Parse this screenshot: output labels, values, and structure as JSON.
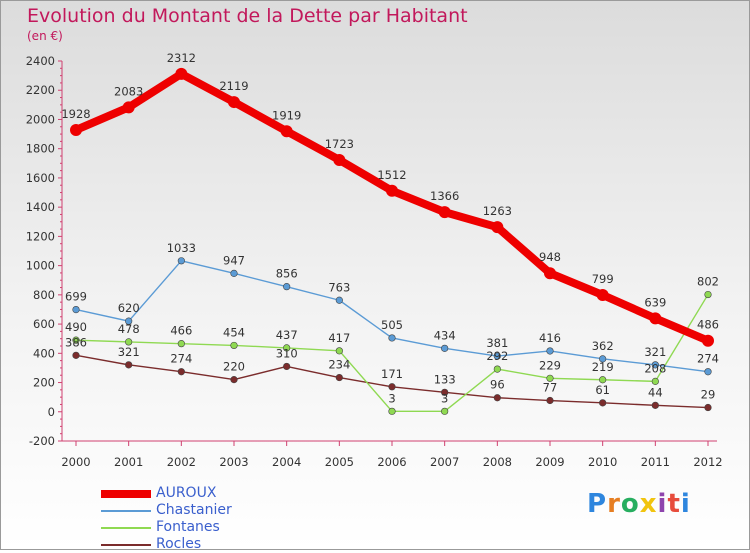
{
  "header": {
    "title": "Evolution du Montant de la Dette par Habitant",
    "subtitle": "(en €)"
  },
  "brand": {
    "text": "Proxiti"
  },
  "chart_data": {
    "type": "line",
    "x": [
      "2000",
      "2001",
      "2002",
      "2003",
      "2004",
      "2005",
      "2006",
      "2007",
      "2008",
      "2009",
      "2010",
      "2011",
      "2012"
    ],
    "ylim": [
      -200,
      2400
    ],
    "yticks": [
      -200,
      0,
      200,
      400,
      600,
      800,
      1000,
      1200,
      1400,
      1600,
      1800,
      2000,
      2200,
      2400
    ],
    "grid": false,
    "legend_position": "bottom-left",
    "series": [
      {
        "name": "AUROUX",
        "color": "#ee0000",
        "values": [
          1928,
          2083,
          2312,
          2119,
          1919,
          1723,
          1512,
          1366,
          1263,
          948,
          799,
          639,
          486
        ]
      },
      {
        "name": "Chastanier",
        "color": "#5b9bd5",
        "values": [
          699,
          620,
          1033,
          947,
          856,
          763,
          505,
          434,
          381,
          416,
          362,
          321,
          274
        ]
      },
      {
        "name": "Fontanes",
        "color": "#8fd952",
        "values": [
          490,
          478,
          466,
          454,
          437,
          417,
          3,
          3,
          292,
          229,
          219,
          208,
          802
        ]
      },
      {
        "name": "Rocles",
        "color": "#7b2c2c",
        "values": [
          386,
          321,
          274,
          220,
          310,
          234,
          171,
          133,
          96,
          77,
          61,
          44,
          29
        ]
      }
    ]
  }
}
